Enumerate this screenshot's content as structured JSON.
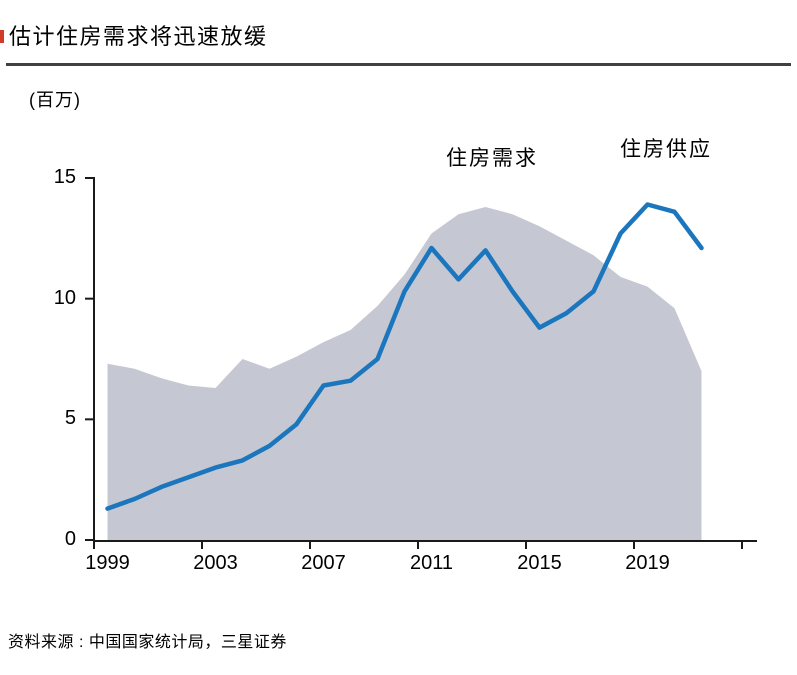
{
  "page": {
    "title": "估计住房需求将迅速放缓",
    "unit_label": "(百万)",
    "source": "资料来源 : 中国国家统计局，三星证券"
  },
  "colors": {
    "demand_area": "#c5c8d2",
    "supply_line": "#1b76bd",
    "axis": "#1a1a1a",
    "red_edge_mark": "#d23a2a"
  },
  "chart_data": {
    "type": "area",
    "title": "估计住房需求将迅速放缓",
    "ylabel": "(百万)",
    "xlabel": "",
    "grid": false,
    "legend_position": "inline-text-annotations",
    "ylim": [
      0,
      15
    ],
    "y_ticks": [
      15,
      10,
      5,
      0
    ],
    "x_tick_labels": [
      "1999",
      "2003",
      "2007",
      "2011",
      "2015",
      "2019"
    ],
    "x": [
      1999,
      2000,
      2001,
      2002,
      2003,
      2004,
      2005,
      2006,
      2007,
      2008,
      2009,
      2010,
      2011,
      2012,
      2013,
      2014,
      2015,
      2016,
      2017,
      2018,
      2019,
      2020,
      2021
    ],
    "series": [
      {
        "name": "住房需求",
        "style": "area",
        "values": [
          7.3,
          7.1,
          6.7,
          6.4,
          6.3,
          7.5,
          7.1,
          7.6,
          8.2,
          8.7,
          9.7,
          11.0,
          12.7,
          13.5,
          13.8,
          13.5,
          13.0,
          12.4,
          11.8,
          10.9,
          10.5,
          9.6,
          7.0
        ]
      },
      {
        "name": "住房供应",
        "style": "line",
        "values": [
          1.3,
          1.7,
          2.2,
          2.6,
          3.0,
          3.3,
          3.9,
          4.8,
          6.4,
          6.6,
          7.5,
          10.3,
          12.1,
          10.8,
          12.0,
          10.3,
          8.8,
          9.4,
          10.3,
          12.7,
          13.9,
          13.6,
          12.1
        ]
      }
    ],
    "annotations": [
      {
        "text": "住房需求"
      },
      {
        "text": "住房供应"
      }
    ]
  }
}
